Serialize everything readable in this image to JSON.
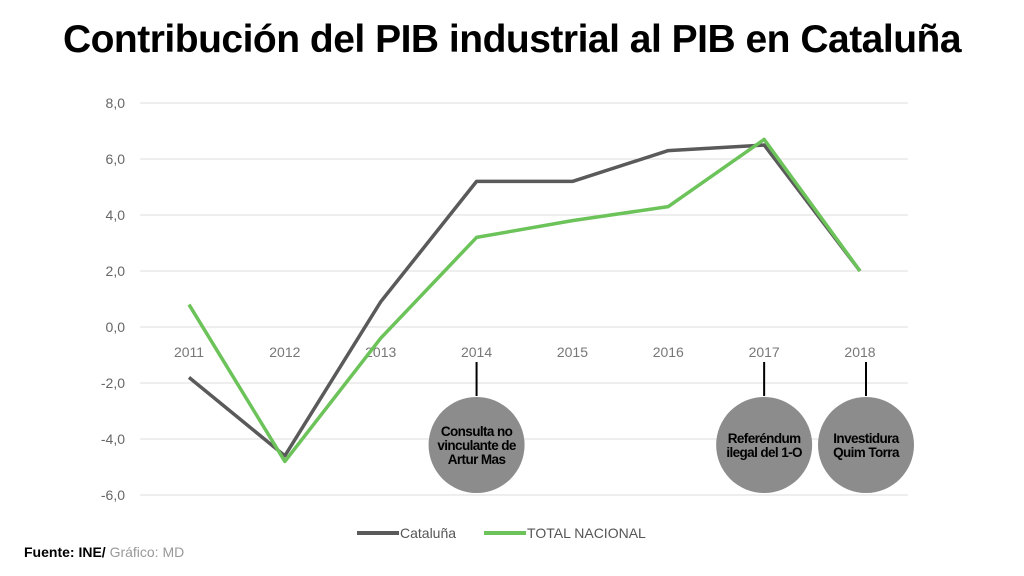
{
  "title": "Contribución del PIB industrial al PIB en Cataluña",
  "source": {
    "label": "Fuente: INE/",
    "credit": "Gráfico: MD"
  },
  "chart_data": {
    "type": "line",
    "title": "Contribución del PIB industrial al PIB en Cataluña",
    "categories": [
      "2011",
      "2012",
      "2013",
      "2014",
      "2015",
      "2016",
      "2017",
      "2018"
    ],
    "series": [
      {
        "name": "Cataluña",
        "color": "#5a5a5a",
        "values": [
          -1.8,
          -4.6,
          0.9,
          5.2,
          5.2,
          6.3,
          6.5,
          2.0
        ]
      },
      {
        "name": "TOTAL NACIONAL",
        "color": "#6cc35a",
        "values": [
          0.8,
          -4.8,
          -0.4,
          3.2,
          3.8,
          4.3,
          6.7,
          2.0
        ]
      }
    ],
    "ylim": [
      -6,
      8
    ],
    "yticks": [
      "-6,0",
      "-4,0",
      "-2,0",
      "0,0",
      "2,0",
      "4,0",
      "6,0",
      "8,0"
    ],
    "grid": true,
    "legend": "bottom",
    "annotations": [
      {
        "category": "2014",
        "text": [
          "Consulta no",
          "vinculante de",
          "Artur Mas"
        ]
      },
      {
        "category": "2017",
        "text": [
          "Referéndum",
          "ilegal del 1-O"
        ]
      },
      {
        "category": "2018",
        "text": [
          "Investidura",
          "Quim Torra"
        ]
      }
    ],
    "annotation_color": "#8c8c8c"
  }
}
